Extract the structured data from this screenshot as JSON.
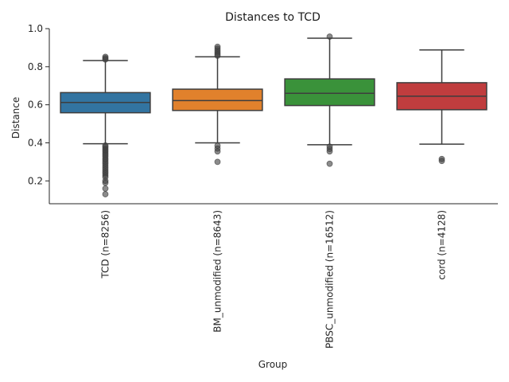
{
  "chart_data": {
    "type": "box",
    "title": "Distances to TCD",
    "xlabel": "Group",
    "ylabel": "Distance",
    "ylim": [
      0.08,
      1.0
    ],
    "yticks": [
      "0.2",
      "0.4",
      "0.6",
      "0.8",
      "1.0"
    ],
    "grid": false,
    "categories": [
      "TCD (n=8256)",
      "BM_unmodified (n=8643)",
      "PBSC_unmodified (n=16512)",
      "cord (n=4128)"
    ],
    "colors": [
      "#3274a1",
      "#e1812c",
      "#3a923a",
      "#c03d3e"
    ],
    "boxes": [
      {
        "whisker_low": 0.395,
        "q1": 0.558,
        "median": 0.612,
        "q3": 0.664,
        "whisker_high": 0.832,
        "outliers": [
          0.852,
          0.845,
          0.838,
          0.386,
          0.378,
          0.37,
          0.362,
          0.354,
          0.345,
          0.337,
          0.328,
          0.318,
          0.31,
          0.3,
          0.29,
          0.28,
          0.27,
          0.26,
          0.25,
          0.24,
          0.23,
          0.22,
          0.2,
          0.19,
          0.16,
          0.13
        ]
      },
      {
        "whisker_low": 0.4,
        "q1": 0.57,
        "median": 0.622,
        "q3": 0.682,
        "whisker_high": 0.852,
        "outliers": [
          0.905,
          0.895,
          0.885,
          0.875,
          0.866,
          0.858,
          0.385,
          0.37,
          0.355,
          0.3
        ]
      },
      {
        "whisker_low": 0.39,
        "q1": 0.596,
        "median": 0.66,
        "q3": 0.736,
        "whisker_high": 0.95,
        "outliers": [
          0.958,
          0.38,
          0.368,
          0.355,
          0.29
        ]
      },
      {
        "whisker_low": 0.393,
        "q1": 0.574,
        "median": 0.645,
        "q3": 0.716,
        "whisker_high": 0.888,
        "outliers": [
          0.315,
          0.305
        ]
      }
    ]
  }
}
